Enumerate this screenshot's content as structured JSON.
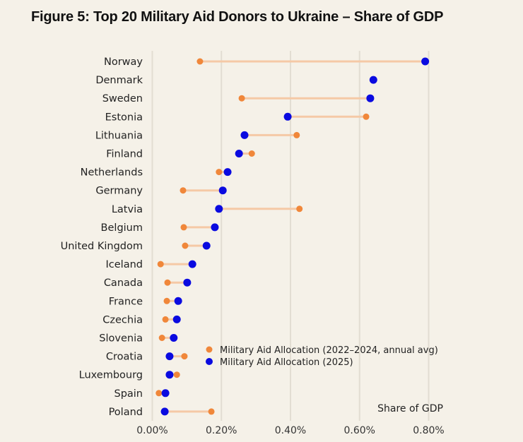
{
  "chart_data": {
    "type": "dumbbell",
    "title": "Figure 5: Top 20 Military Aid Donors to Ukraine – Share of GDP",
    "xlabel": "Share of GDP",
    "ylabel": "",
    "xlim": [
      0,
      0.8
    ],
    "x_ticks": [
      "0.00%",
      "0.20%",
      "0.40%",
      "0.60%",
      "0.80%"
    ],
    "x_tick_values": [
      0,
      0.2,
      0.4,
      0.6,
      0.8
    ],
    "grid": "vertical",
    "legend_position": "bottom-right",
    "categories": [
      "Norway",
      "Denmark",
      "Sweden",
      "Estonia",
      "Lithuania",
      "Finland",
      "Netherlands",
      "Germany",
      "Latvia",
      "Belgium",
      "United Kingdom",
      "Iceland",
      "Canada",
      "France",
      "Czechia",
      "Slovenia",
      "Croatia",
      "Luxembourg",
      "Spain",
      "Poland"
    ],
    "series": [
      {
        "name": "Military Aid Allocation (2022–2024, annual avg)",
        "color": "#f0873a",
        "values": [
          0.138,
          0.64,
          0.259,
          0.619,
          0.418,
          0.288,
          0.193,
          0.089,
          0.426,
          0.091,
          0.095,
          0.024,
          0.044,
          0.042,
          0.038,
          0.028,
          0.093,
          0.071,
          0.019,
          0.171
        ]
      },
      {
        "name": "Military Aid Allocation (2025)",
        "color": "#0a0ae0",
        "values": [
          0.79,
          0.64,
          0.631,
          0.392,
          0.267,
          0.251,
          0.218,
          0.204,
          0.193,
          0.181,
          0.157,
          0.116,
          0.101,
          0.075,
          0.071,
          0.062,
          0.05,
          0.05,
          0.038,
          0.036
        ]
      }
    ],
    "connector_color": "#f5c9a6"
  }
}
